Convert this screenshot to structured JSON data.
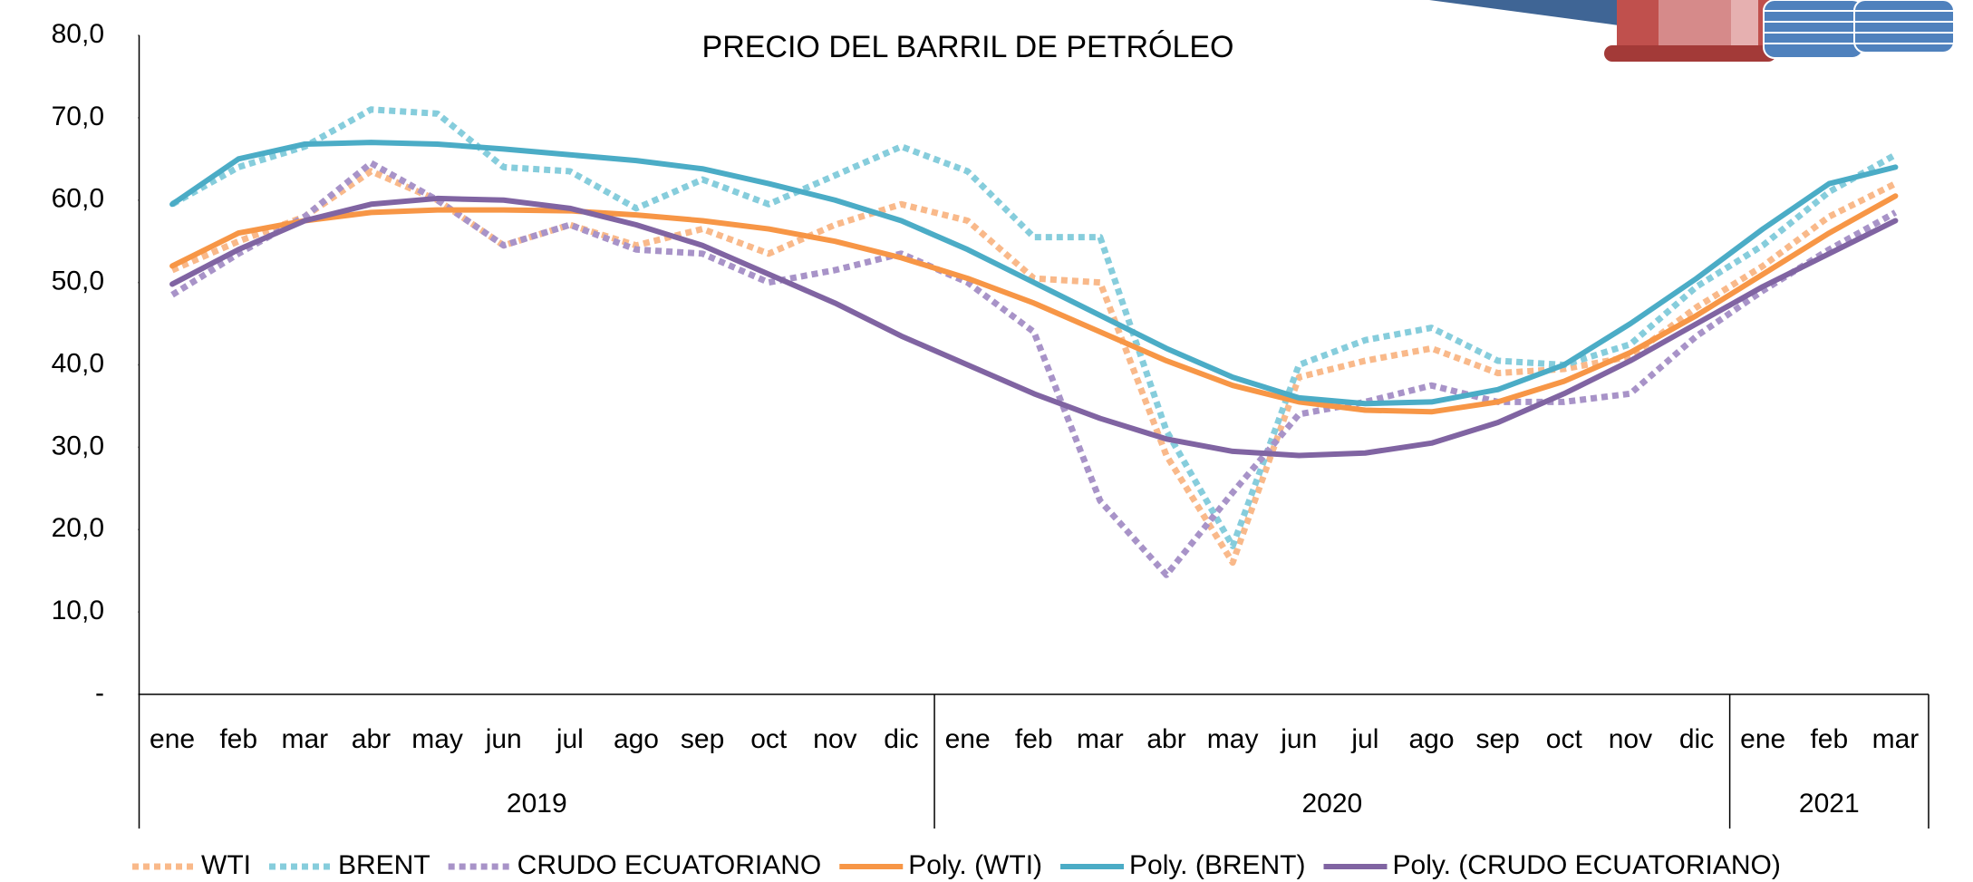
{
  "chart_data": {
    "type": "line",
    "title": "PRECIO DEL BARRIL DE PETRÓLEO",
    "categories": [
      "ene",
      "feb",
      "mar",
      "abr",
      "may",
      "jun",
      "jul",
      "ago",
      "sep",
      "oct",
      "nov",
      "dic",
      "ene",
      "feb",
      "mar",
      "abr",
      "may",
      "jun",
      "jul",
      "ago",
      "sep",
      "oct",
      "nov",
      "dic",
      "ene",
      "feb",
      "mar"
    ],
    "groups": [
      {
        "label": "2019",
        "count": 12
      },
      {
        "label": "2020",
        "count": 12
      },
      {
        "label": "2021",
        "count": 3
      }
    ],
    "ylim": [
      0,
      80
    ],
    "yticks": [
      {
        "value": 0,
        "label": "-"
      },
      {
        "value": 10,
        "label": "10,0"
      },
      {
        "value": 20,
        "label": "20,0"
      },
      {
        "value": 30,
        "label": "30,0"
      },
      {
        "value": 40,
        "label": "40,0"
      },
      {
        "value": 50,
        "label": "50,0"
      },
      {
        "value": 60,
        "label": "60,0"
      },
      {
        "value": 70,
        "label": "70,0"
      },
      {
        "value": 80,
        "label": "80,0"
      }
    ],
    "grid": false,
    "legend": "bottom",
    "series": [
      {
        "name": "WTI",
        "color": "#f9b98a",
        "style": "dotted",
        "values": [
          51.5,
          55,
          58,
          63.5,
          60,
          54.5,
          57,
          54.5,
          56.5,
          53.5,
          57,
          59.5,
          57.5,
          50.5,
          50,
          29,
          16,
          38.5,
          40.5,
          42,
          39,
          39.5,
          41,
          47,
          52,
          58,
          62
        ]
      },
      {
        "name": "BRENT",
        "color": "#86cddc",
        "style": "dotted",
        "values": [
          59.5,
          64,
          66.5,
          71,
          70.5,
          64,
          63.5,
          59,
          62.5,
          59.5,
          63,
          66.5,
          63.5,
          55.5,
          55.5,
          32,
          18,
          40,
          43,
          44.5,
          40.5,
          40,
          42.5,
          49.5,
          54.5,
          61,
          65.5
        ]
      },
      {
        "name": "CRUDO ECUATORIANO",
        "color": "#a893c8",
        "style": "dotted",
        "values": [
          48.5,
          53.5,
          58,
          64.5,
          60,
          54.5,
          57,
          54,
          53.5,
          50,
          51.5,
          53.5,
          50,
          44,
          23.5,
          14.5,
          24.5,
          34,
          35.5,
          37.5,
          35.5,
          35.5,
          36.5,
          43.5,
          49,
          54,
          58.5
        ]
      },
      {
        "name": "Poly. (WTI)",
        "color": "#f79646",
        "style": "solid",
        "values": [
          52,
          56,
          57.5,
          58.5,
          58.8,
          58.8,
          58.7,
          58.2,
          57.5,
          56.5,
          55,
          53,
          50.5,
          47.5,
          44,
          40.5,
          37.5,
          35.5,
          34.5,
          34.3,
          35.5,
          38,
          41.5,
          46,
          51,
          56,
          60.5
        ]
      },
      {
        "name": "Poly. (BRENT)",
        "color": "#4bacc6",
        "style": "solid",
        "values": [
          59.5,
          65,
          66.8,
          67,
          66.8,
          66.2,
          65.5,
          64.8,
          63.8,
          62,
          60,
          57.5,
          54,
          50,
          46,
          42,
          38.5,
          36,
          35.3,
          35.5,
          37,
          40,
          45,
          50.5,
          56.5,
          62,
          64
        ]
      },
      {
        "name": "Poly. (CRUDO ECUATORIANO)",
        "color": "#8064a2",
        "style": "solid",
        "values": [
          49.8,
          54,
          57.5,
          59.5,
          60.2,
          60,
          59,
          57,
          54.5,
          51,
          47.5,
          43.5,
          40,
          36.5,
          33.5,
          31,
          29.5,
          29,
          29.3,
          30.5,
          33,
          36.5,
          40.5,
          45,
          49.5,
          53.5,
          57.5
        ]
      }
    ]
  }
}
